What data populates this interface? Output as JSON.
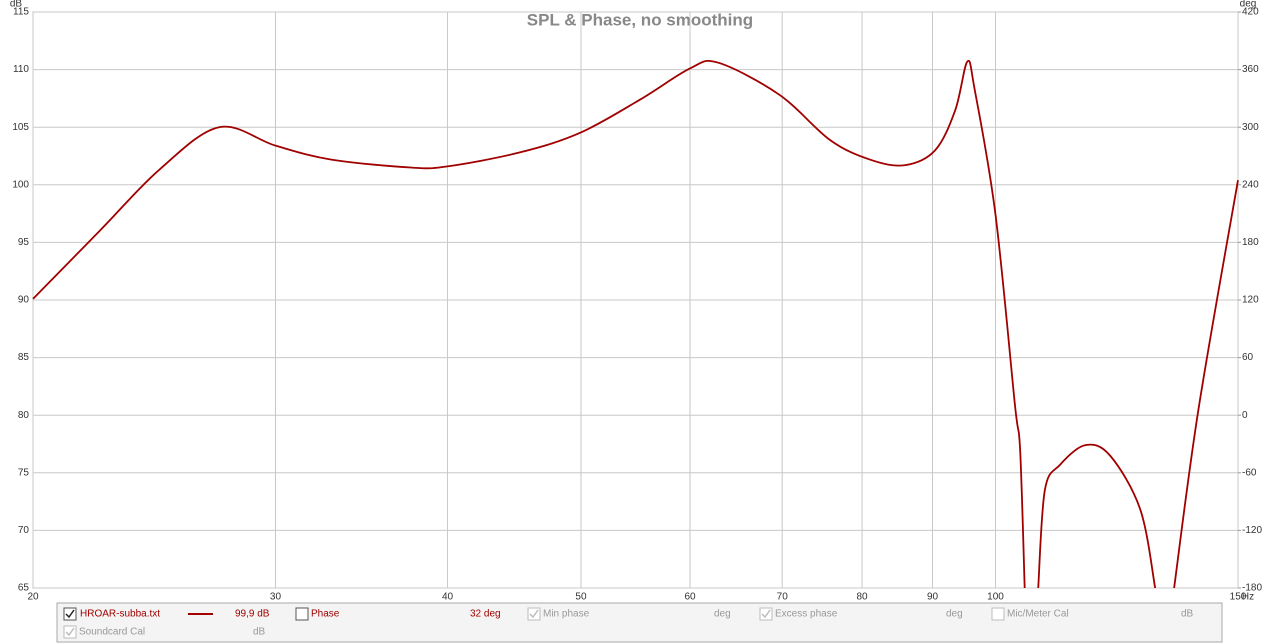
{
  "chart_data": {
    "type": "line",
    "title": "SPL & Phase, no smoothing",
    "ylabel": "dB",
    "y2label": "deg",
    "xlabel": "Hz",
    "xscale": "log",
    "grid": true,
    "x": [
      20,
      22.4,
      24.7,
      27.3,
      30,
      32.9,
      37.6,
      40,
      45.1,
      49.9,
      55.2,
      60,
      62.9,
      69.7,
      75.8,
      81,
      85.9,
      90.4,
      93.5,
      95.4,
      96.6,
      100,
      103.3,
      104.2,
      105,
      null,
      107.4,
      108.6,
      111.4,
      116.2,
      121.1,
      127.4,
      130.6,
      null,
      134.8,
      140.4,
      150
    ],
    "series": [
      {
        "name": "HROAR-subba.txt",
        "reading": "99,9 dB",
        "checked": true,
        "color": "#a00000",
        "values": [
          90.1,
          96.1,
          101.3,
          105.0,
          103.4,
          102.2,
          101.5,
          101.6,
          102.8,
          104.5,
          107.4,
          110.1,
          110.6,
          107.8,
          103.9,
          102.2,
          101.7,
          103.0,
          106.5,
          110.7,
          108.2,
          97.4,
          80.9,
          77.0,
          65,
          null,
          65,
          73.5,
          75.7,
          77.4,
          76.5,
          71.8,
          65,
          null,
          65,
          80.5,
          100.4
        ]
      }
    ],
    "xlim": [
      20,
      150
    ],
    "xticks": [
      20,
      30,
      40,
      50,
      60,
      70,
      80,
      90,
      100,
      150
    ],
    "ylim": [
      65,
      115
    ],
    "yticks": [
      65,
      70,
      75,
      80,
      85,
      90,
      95,
      100,
      105,
      110,
      115
    ],
    "y2lim": [
      -180,
      420
    ],
    "y2ticks": [
      -180,
      -120,
      -60,
      0,
      60,
      120,
      180,
      240,
      300,
      360,
      420
    ],
    "legend_panel": [
      {
        "label": "Phase",
        "reading": "32 deg",
        "checked": false,
        "enabled": true
      },
      {
        "label": "Min phase",
        "reading": "deg",
        "checked": true,
        "enabled": false
      },
      {
        "label": "Excess phase",
        "reading": "deg",
        "checked": true,
        "enabled": false
      },
      {
        "label": "Mic/Meter Cal",
        "reading": "dB",
        "checked": false,
        "enabled": false
      },
      {
        "label": "Soundcard Cal",
        "reading": "dB",
        "checked": true,
        "enabled": false
      }
    ]
  }
}
